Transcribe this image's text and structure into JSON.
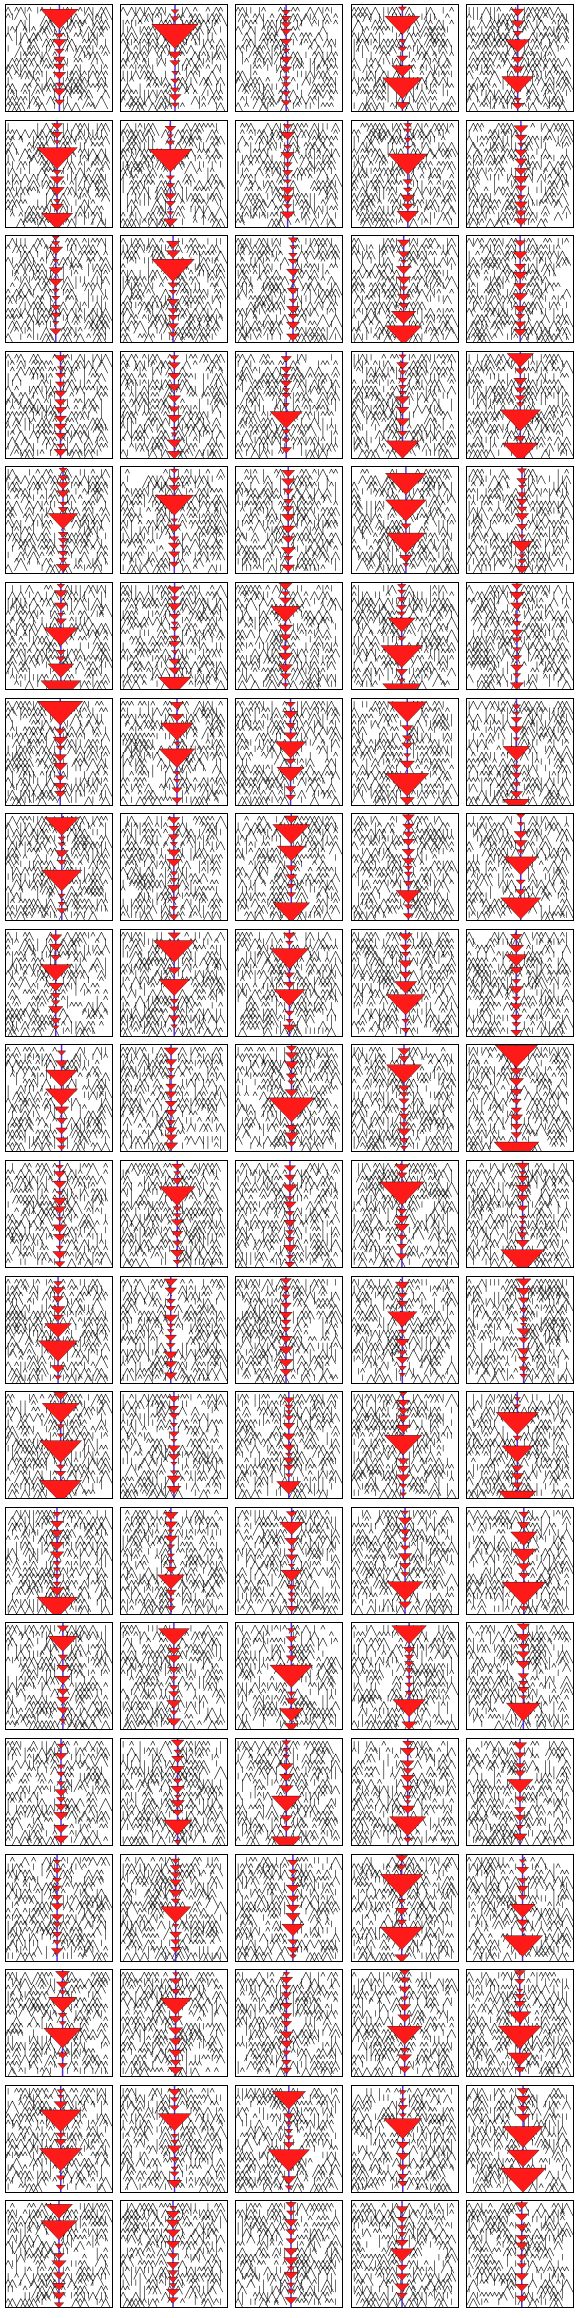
{
  "figure": {
    "rows": 20,
    "columns": 5,
    "panel_count": 100
  },
  "colors": {
    "background": "#ffffff",
    "frame": "#000000",
    "pattern_line": "#000000",
    "highlight_fill": "#ff1a1a",
    "center_line": "#5a2bd8"
  },
  "panels": [
    {
      "id": 1,
      "highlight": "center-red-triangle-column"
    },
    {
      "id": 2,
      "highlight": "center-red-triangle-column"
    },
    {
      "id": 3,
      "highlight": "center-red-triangle-column"
    },
    {
      "id": 4,
      "highlight": "center-red-triangle-column"
    },
    {
      "id": 5,
      "highlight": "center-red-triangle-column"
    }
  ]
}
